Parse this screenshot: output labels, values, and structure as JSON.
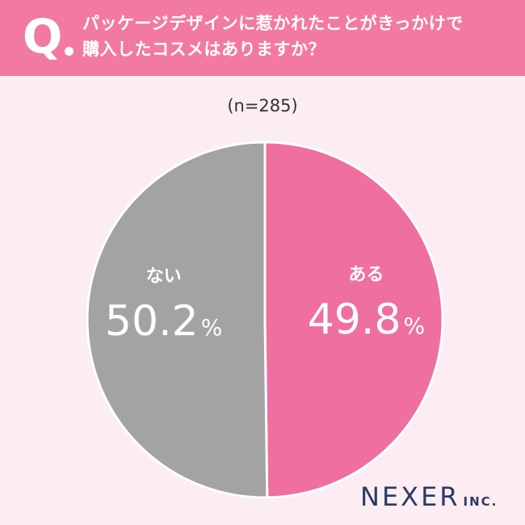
{
  "header": {
    "q_label": "Q",
    "question_line1": "パッケージデザインに惹かれたことがきっかけで",
    "question_line2": "購入したコスメはありますか？"
  },
  "sample_label": "(n=285)",
  "colors": {
    "header": "#f27aa0",
    "background": "#fbedf2",
    "yes_slice": "#ef6fa1",
    "no_slice": "#a3a3a3"
  },
  "chart_data": {
    "type": "pie",
    "slices": [
      {
        "label": "ある",
        "value": 49.8,
        "display": "49.8",
        "unit": "%",
        "color": "#ef6fa1"
      },
      {
        "label": "ない",
        "value": 50.2,
        "display": "50.2",
        "unit": "%",
        "color": "#a3a3a3"
      }
    ],
    "start_angle_deg": 0,
    "direction": "clockwise"
  },
  "logo": {
    "main": "NEXER",
    "suffix": "INC."
  }
}
